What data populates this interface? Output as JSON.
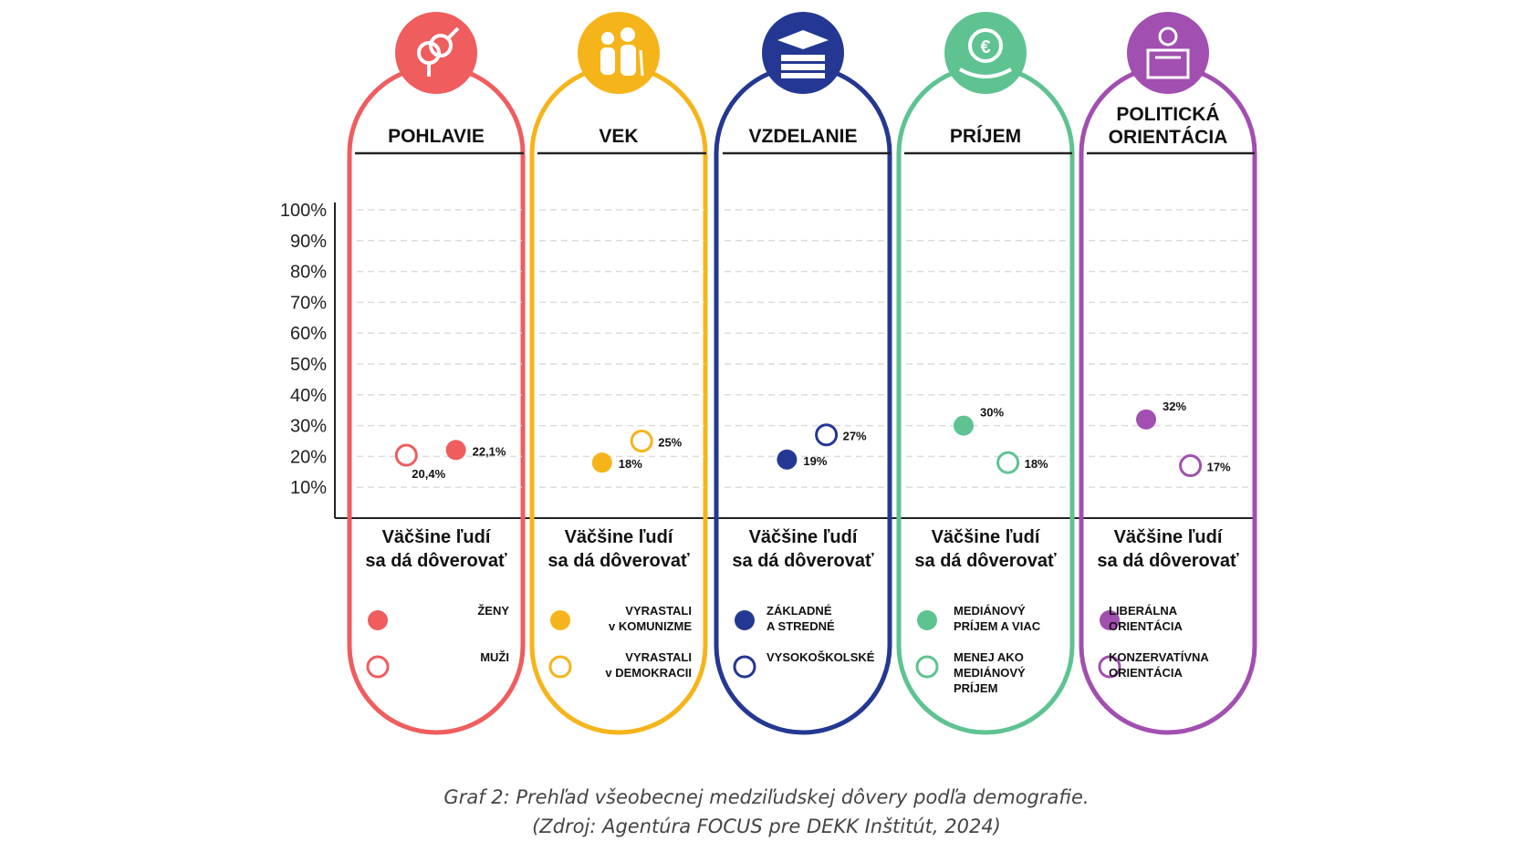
{
  "chart_data": {
    "type": "scatter",
    "y_axis": {
      "range": [
        0,
        100
      ],
      "tick_values": [
        10,
        20,
        30,
        40,
        50,
        60,
        70,
        80,
        90,
        100
      ],
      "tick_labels": [
        "10%",
        "20%",
        "30%",
        "40%",
        "50%",
        "60%",
        "70%",
        "80%",
        "90%",
        "100%"
      ],
      "grid": true
    },
    "panel_subtitle": [
      "Väčšine ľudí",
      "sa dá dôverovať"
    ],
    "panels": [
      {
        "title": [
          "POHLAVIE"
        ],
        "color": "#ef5d5f",
        "icon": "gender-symbols-icon",
        "series": [
          {
            "name": [
              "ŽENY"
            ],
            "filled": true,
            "value": 22.1,
            "label": "22,1%"
          },
          {
            "name": [
              "MUŽI"
            ],
            "filled": false,
            "value": 20.4,
            "label": "20,4%"
          }
        ]
      },
      {
        "title": [
          "VEK"
        ],
        "color": "#f6b41b",
        "icon": "people-age-icon",
        "series": [
          {
            "name": [
              "VYRASTALI",
              "v KOMUNIZME"
            ],
            "filled": true,
            "value": 18,
            "label": "18%"
          },
          {
            "name": [
              "VYRASTALI",
              "v DEMOKRACII"
            ],
            "filled": false,
            "value": 25,
            "label": "25%"
          }
        ]
      },
      {
        "title": [
          "VZDELANIE"
        ],
        "color": "#243893",
        "icon": "graduation-cap-books-icon",
        "series": [
          {
            "name": [
              "ZÁKLADNÉ",
              "A STREDNÉ"
            ],
            "filled": true,
            "value": 19,
            "label": "19%"
          },
          {
            "name": [
              "VYSOKOŠKOLSKÉ"
            ],
            "filled": false,
            "value": 27,
            "label": "27%"
          }
        ]
      },
      {
        "title": [
          "PRÍJEM"
        ],
        "color": "#5ec391",
        "icon": "euro-coin-hand-icon",
        "series": [
          {
            "name": [
              "MEDIÁNOVÝ",
              "PRÍJEM A VIAC"
            ],
            "filled": true,
            "value": 30,
            "label": "30%"
          },
          {
            "name": [
              "MENEJ AKO",
              "MEDIÁNOVÝ",
              "PRÍJEM"
            ],
            "filled": false,
            "value": 18,
            "label": "18%"
          }
        ]
      },
      {
        "title": [
          "POLITICKÁ",
          "ORIENTÁCIA"
        ],
        "color": "#a14fb0",
        "icon": "politician-podium-icon",
        "series": [
          {
            "name": [
              "LIBERÁLNA",
              "ORIENTÁCIA"
            ],
            "filled": true,
            "value": 32,
            "label": "32%"
          },
          {
            "name": [
              "KONZERVATÍVNA",
              "ORIENTÁCIA"
            ],
            "filled": false,
            "value": 17,
            "label": "17%"
          }
        ]
      }
    ]
  },
  "caption": {
    "line1": "Graf 2: Prehľad všeobecnej medziľudskej dôvery podľa demografie.",
    "line2": "(Zdroj: Agentúra FOCUS pre DEKK Inštitút, 2024)"
  }
}
